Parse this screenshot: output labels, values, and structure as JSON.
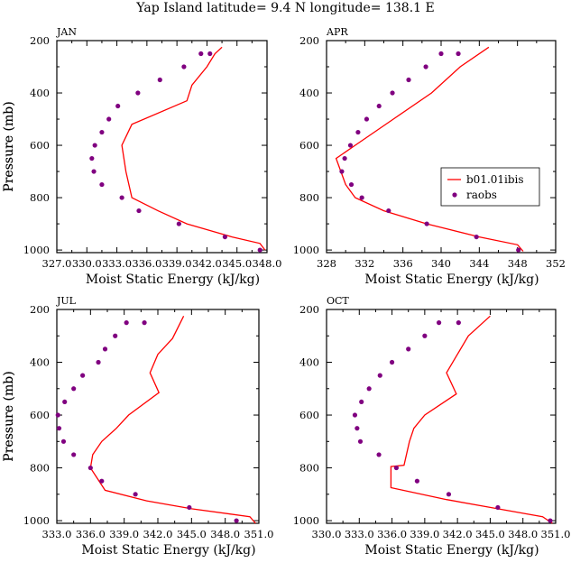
{
  "figure": {
    "title": "Yap Island  latitude= 9.4 N longitude= 138.1 E",
    "ylabel": "Pressure (mb)",
    "xlabel": "Moist Static Energy (kJ/kg)"
  },
  "colors": {
    "model": "#ff0000",
    "raobs": "#800080"
  },
  "legend": {
    "panel": "APR",
    "entries": [
      {
        "label": "b01.01ibis",
        "kind": "line"
      },
      {
        "label": "raobs",
        "kind": "marker"
      }
    ]
  },
  "chart_data": [
    {
      "type": "line",
      "panel_label": "JAN",
      "xlim": [
        327.0,
        348.0
      ],
      "ylim": [
        1010,
        200
      ],
      "y_reversed": true,
      "xticks": [
        327.0,
        330.0,
        333.0,
        336.0,
        339.0,
        342.0,
        345.0,
        348.0
      ],
      "xtick_labels": [
        "327.0",
        "330.0",
        "333.0",
        "336.0",
        "339.0",
        "342.0",
        "345.0",
        "348.0"
      ],
      "yticks": [
        200,
        400,
        600,
        800,
        1000
      ],
      "ytick_labels": [
        "200",
        "400",
        "600",
        "800",
        "1000"
      ],
      "series": [
        {
          "name": "b01.01ibis",
          "style": "line",
          "x": [
            347.8,
            347.3,
            344.5,
            340.0,
            337.1,
            334.5,
            333.9,
            333.5,
            334.5,
            340.0,
            340.5,
            342.0,
            342.8,
            343.5
          ],
          "y": [
            1000,
            975,
            950,
            900,
            850,
            800,
            700,
            600,
            520,
            430,
            370,
            300,
            250,
            225
          ]
        },
        {
          "name": "raobs",
          "style": "scatter",
          "x": [
            347.3,
            343.8,
            339.2,
            335.2,
            333.5,
            331.5,
            330.7,
            330.5,
            330.8,
            331.5,
            332.2,
            333.1,
            335.1,
            337.3,
            339.7,
            341.4,
            342.3
          ],
          "y": [
            1000,
            950,
            900,
            850,
            800,
            750,
            700,
            650,
            600,
            550,
            500,
            450,
            400,
            350,
            300,
            250,
            250
          ]
        }
      ]
    },
    {
      "type": "line",
      "panel_label": "APR",
      "xlim": [
        328,
        352
      ],
      "ylim": [
        1010,
        200
      ],
      "y_reversed": true,
      "xticks": [
        328,
        332,
        336,
        340,
        344,
        348,
        352
      ],
      "xtick_labels": [
        "328",
        "332",
        "336",
        "340",
        "344",
        "348",
        "352"
      ],
      "yticks": [
        200,
        400,
        600,
        800,
        1000
      ],
      "ytick_labels": [
        "200",
        "400",
        "600",
        "800",
        "1000"
      ],
      "series": [
        {
          "name": "b01.01ibis",
          "style": "line",
          "x": [
            348.6,
            348.0,
            344.0,
            338.5,
            334.0,
            331.0,
            330.0,
            329.5,
            329.0,
            331.0,
            335.0,
            339.0,
            342.0,
            345.0
          ],
          "y": [
            1005,
            980,
            950,
            900,
            850,
            800,
            750,
            700,
            650,
            600,
            500,
            400,
            300,
            225
          ]
        },
        {
          "name": "raobs",
          "style": "scatter",
          "x": [
            348.1,
            343.7,
            338.5,
            334.5,
            331.7,
            330.6,
            329.6,
            329.9,
            330.5,
            331.3,
            332.2,
            333.5,
            334.9,
            336.6,
            338.4,
            340.0,
            341.8
          ],
          "y": [
            1000,
            950,
            900,
            850,
            800,
            750,
            700,
            650,
            600,
            550,
            500,
            450,
            400,
            350,
            300,
            250,
            250
          ]
        }
      ]
    },
    {
      "type": "line",
      "panel_label": "JUL",
      "xlim": [
        333.0,
        351.0
      ],
      "ylim": [
        1010,
        200
      ],
      "y_reversed": true,
      "xticks": [
        333.0,
        336.0,
        339.0,
        342.0,
        345.0,
        348.0,
        351.0
      ],
      "xtick_labels": [
        "333.0",
        "336.0",
        "339.0",
        "342.0",
        "345.0",
        "348.0",
        "351.0"
      ],
      "yticks": [
        200,
        400,
        600,
        800,
        1000
      ],
      "ytick_labels": [
        "200",
        "400",
        "600",
        "800",
        "1000"
      ],
      "series": [
        {
          "name": "b01.01ibis",
          "style": "line",
          "x": [
            350.7,
            350.2,
            345.0,
            341.0,
            337.3,
            336.0,
            336.2,
            337.0,
            338.3,
            339.4,
            342.1,
            341.3,
            342.0,
            343.3,
            344.3
          ],
          "y": [
            1010,
            985,
            955,
            925,
            885,
            800,
            750,
            700,
            650,
            600,
            515,
            440,
            370,
            310,
            225
          ]
        },
        {
          "name": "raobs",
          "style": "scatter",
          "x": [
            349.0,
            344.8,
            340.0,
            337.0,
            336.0,
            334.5,
            333.6,
            333.2,
            333.1,
            333.7,
            334.5,
            335.3,
            336.7,
            337.3,
            338.2,
            339.2,
            340.8
          ],
          "y": [
            1000,
            950,
            900,
            850,
            800,
            750,
            700,
            650,
            600,
            550,
            500,
            450,
            400,
            350,
            300,
            250,
            250
          ]
        }
      ]
    },
    {
      "type": "line",
      "panel_label": "OCT",
      "xlim": [
        330.0,
        351.0
      ],
      "ylim": [
        1010,
        200
      ],
      "y_reversed": true,
      "xticks": [
        330.0,
        333.0,
        336.0,
        339.0,
        342.0,
        345.0,
        348.0,
        351.0
      ],
      "xtick_labels": [
        "330.0",
        "333.0",
        "336.0",
        "339.0",
        "342.0",
        "345.0",
        "348.0",
        "351.0"
      ],
      "yticks": [
        200,
        400,
        600,
        800,
        1000
      ],
      "ytick_labels": [
        "200",
        "400",
        "600",
        "800",
        "1000"
      ],
      "series": [
        {
          "name": "b01.01ibis",
          "style": "line",
          "x": [
            350.7,
            349.8,
            345.0,
            341.0,
            335.9,
            335.9,
            337.1,
            337.6,
            338.0,
            339.0,
            341.9,
            341.0,
            342.0,
            343.0,
            345.0
          ],
          "y": [
            1010,
            985,
            950,
            920,
            875,
            795,
            790,
            700,
            650,
            600,
            520,
            440,
            370,
            300,
            225
          ]
        },
        {
          "name": "raobs",
          "style": "scatter",
          "x": [
            350.5,
            345.7,
            341.2,
            338.3,
            336.4,
            334.8,
            333.1,
            332.8,
            332.6,
            333.2,
            333.9,
            334.9,
            336.0,
            337.5,
            339.0,
            340.3,
            342.1
          ],
          "y": [
            1000,
            950,
            900,
            850,
            800,
            750,
            700,
            650,
            600,
            550,
            500,
            450,
            400,
            350,
            300,
            250,
            250
          ]
        }
      ]
    }
  ]
}
